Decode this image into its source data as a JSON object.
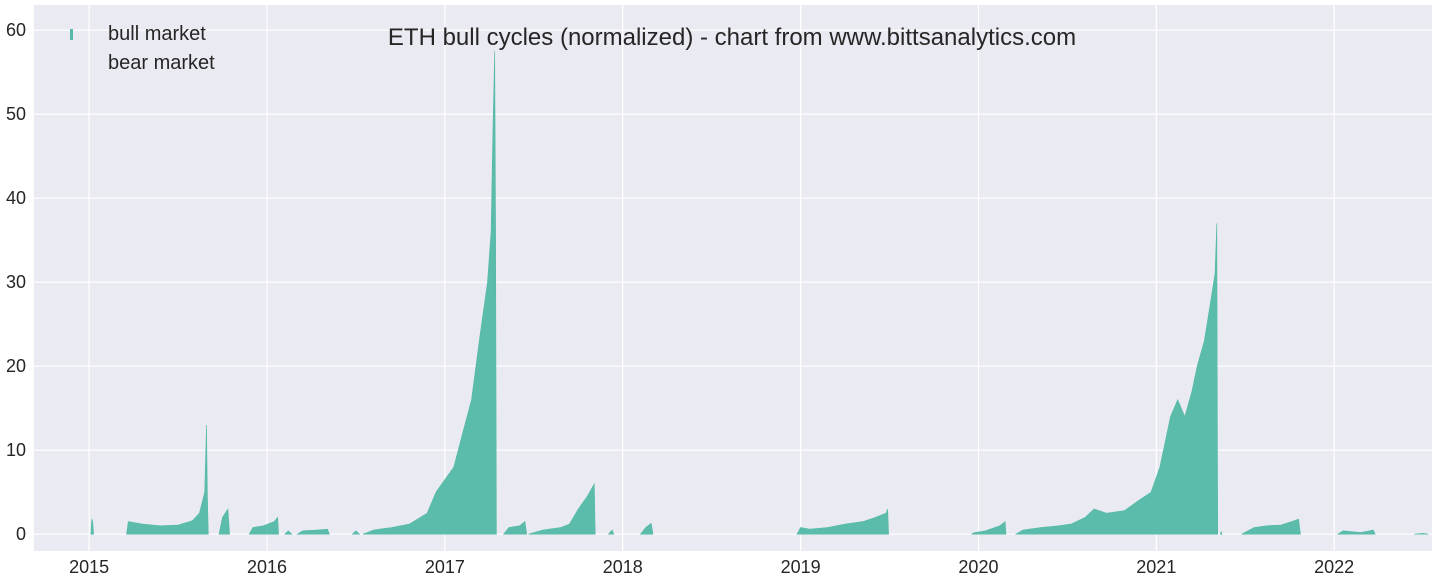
{
  "chart_data": {
    "type": "area",
    "title": "ETH bull cycles (normalized)  - chart from www.bittsanalytics.com",
    "xlabel": "",
    "ylabel": "",
    "xlim": [
      2014.69,
      2022.55
    ],
    "ylim": [
      -2,
      63
    ],
    "grid": true,
    "legend_position": "top-left",
    "x_ticks": [
      2015,
      2016,
      2017,
      2018,
      2019,
      2020,
      2021,
      2022
    ],
    "y_ticks": [
      0,
      10,
      20,
      30,
      40,
      50,
      60
    ],
    "colors": {
      "bull": "#54b9a6",
      "background": "#eaeaf2",
      "grid": "#ffffff",
      "text": "#262626"
    },
    "series": [
      {
        "name": "bull market",
        "segments": [
          [
            [
              2015.01,
              0.0
            ],
            [
              2015.015,
              1.8
            ],
            [
              2015.02,
              1.5
            ],
            [
              2015.025,
              0.0
            ]
          ],
          [
            [
              2015.21,
              0.0
            ],
            [
              2015.22,
              1.5
            ],
            [
              2015.3,
              1.2
            ],
            [
              2015.4,
              1.0
            ],
            [
              2015.5,
              1.1
            ],
            [
              2015.58,
              1.6
            ],
            [
              2015.62,
              2.5
            ],
            [
              2015.65,
              5.0
            ],
            [
              2015.66,
              13.0
            ],
            [
              2015.665,
              4.5
            ],
            [
              2015.67,
              0.0
            ]
          ],
          [
            [
              2015.73,
              0.0
            ],
            [
              2015.75,
              2.0
            ],
            [
              2015.78,
              3.0
            ],
            [
              2015.79,
              0.0
            ]
          ],
          [
            [
              2015.9,
              0.0
            ],
            [
              2015.92,
              0.8
            ],
            [
              2015.98,
              1.0
            ],
            [
              2016.04,
              1.5
            ],
            [
              2016.06,
              2.0
            ],
            [
              2016.065,
              0.0
            ]
          ],
          [
            [
              2016.1,
              0.0
            ],
            [
              2016.12,
              0.4
            ],
            [
              2016.14,
              0.0
            ]
          ],
          [
            [
              2016.17,
              0.0
            ],
            [
              2016.2,
              0.4
            ],
            [
              2016.28,
              0.5
            ],
            [
              2016.34,
              0.6
            ],
            [
              2016.35,
              0.0
            ]
          ],
          [
            [
              2016.48,
              0.0
            ],
            [
              2016.5,
              0.4
            ],
            [
              2016.52,
              0.0
            ]
          ],
          [
            [
              2016.54,
              0.0
            ],
            [
              2016.6,
              0.5
            ],
            [
              2016.7,
              0.8
            ],
            [
              2016.8,
              1.2
            ],
            [
              2016.9,
              2.5
            ],
            [
              2016.95,
              5.0
            ],
            [
              2017.0,
              6.5
            ],
            [
              2017.05,
              8.0
            ],
            [
              2017.1,
              12.0
            ],
            [
              2017.15,
              16.0
            ],
            [
              2017.2,
              24.0
            ],
            [
              2017.24,
              30.0
            ],
            [
              2017.26,
              36.0
            ],
            [
              2017.27,
              48.0
            ],
            [
              2017.28,
              57.5
            ],
            [
              2017.285,
              36.0
            ],
            [
              2017.29,
              0.0
            ]
          ],
          [
            [
              2017.33,
              0.0
            ],
            [
              2017.36,
              0.8
            ],
            [
              2017.42,
              1.0
            ],
            [
              2017.45,
              1.5
            ],
            [
              2017.46,
              0.0
            ]
          ],
          [
            [
              2017.47,
              0.0
            ],
            [
              2017.55,
              0.5
            ],
            [
              2017.65,
              0.8
            ],
            [
              2017.7,
              1.2
            ],
            [
              2017.75,
              3.0
            ],
            [
              2017.8,
              4.5
            ],
            [
              2017.84,
              6.0
            ],
            [
              2017.845,
              0.0
            ]
          ],
          [
            [
              2017.92,
              0.0
            ],
            [
              2017.94,
              0.5
            ],
            [
              2017.95,
              0.0
            ]
          ],
          [
            [
              2018.1,
              0.0
            ],
            [
              2018.13,
              0.8
            ],
            [
              2018.16,
              1.3
            ],
            [
              2018.17,
              0.0
            ]
          ],
          [
            [
              2018.98,
              0.0
            ],
            [
              2019.0,
              0.8
            ],
            [
              2019.05,
              0.6
            ],
            [
              2019.15,
              0.8
            ],
            [
              2019.25,
              1.2
            ],
            [
              2019.35,
              1.5
            ],
            [
              2019.42,
              2.0
            ],
            [
              2019.48,
              2.5
            ],
            [
              2019.49,
              3.0
            ],
            [
              2019.495,
              0.0
            ]
          ],
          [
            [
              2019.96,
              0.0
            ],
            [
              2019.98,
              0.2
            ],
            [
              2020.04,
              0.4
            ],
            [
              2020.12,
              1.0
            ],
            [
              2020.15,
              1.5
            ],
            [
              2020.155,
              0.0
            ]
          ],
          [
            [
              2020.21,
              0.0
            ],
            [
              2020.25,
              0.5
            ],
            [
              2020.35,
              0.8
            ],
            [
              2020.45,
              1.0
            ],
            [
              2020.52,
              1.2
            ],
            [
              2020.6,
              2.0
            ],
            [
              2020.65,
              3.0
            ],
            [
              2020.72,
              2.5
            ],
            [
              2020.82,
              2.8
            ],
            [
              2020.9,
              4.0
            ],
            [
              2020.97,
              5.0
            ],
            [
              2021.02,
              8.0
            ],
            [
              2021.05,
              11.0
            ],
            [
              2021.08,
              14.0
            ],
            [
              2021.12,
              16.0
            ],
            [
              2021.16,
              14.0
            ],
            [
              2021.2,
              17.0
            ],
            [
              2021.23,
              20.0
            ],
            [
              2021.27,
              23.0
            ],
            [
              2021.3,
              27.0
            ],
            [
              2021.33,
              31.0
            ],
            [
              2021.34,
              37.0
            ],
            [
              2021.345,
              0.0
            ]
          ],
          [
            [
              2021.36,
              0.0
            ],
            [
              2021.365,
              0.3
            ],
            [
              2021.37,
              0.0
            ]
          ],
          [
            [
              2021.48,
              0.0
            ],
            [
              2021.55,
              0.8
            ],
            [
              2021.62,
              1.0
            ],
            [
              2021.7,
              1.1
            ],
            [
              2021.76,
              1.5
            ],
            [
              2021.8,
              1.8
            ],
            [
              2021.81,
              0.0
            ]
          ],
          [
            [
              2022.02,
              0.0
            ],
            [
              2022.05,
              0.4
            ],
            [
              2022.1,
              0.3
            ],
            [
              2022.15,
              0.2
            ],
            [
              2022.2,
              0.4
            ],
            [
              2022.22,
              0.5
            ],
            [
              2022.23,
              0.0
            ]
          ],
          [
            [
              2022.45,
              0.0
            ],
            [
              2022.5,
              0.1
            ],
            [
              2022.53,
              0.0
            ]
          ]
        ]
      },
      {
        "name": "bear market",
        "segments": []
      }
    ]
  }
}
